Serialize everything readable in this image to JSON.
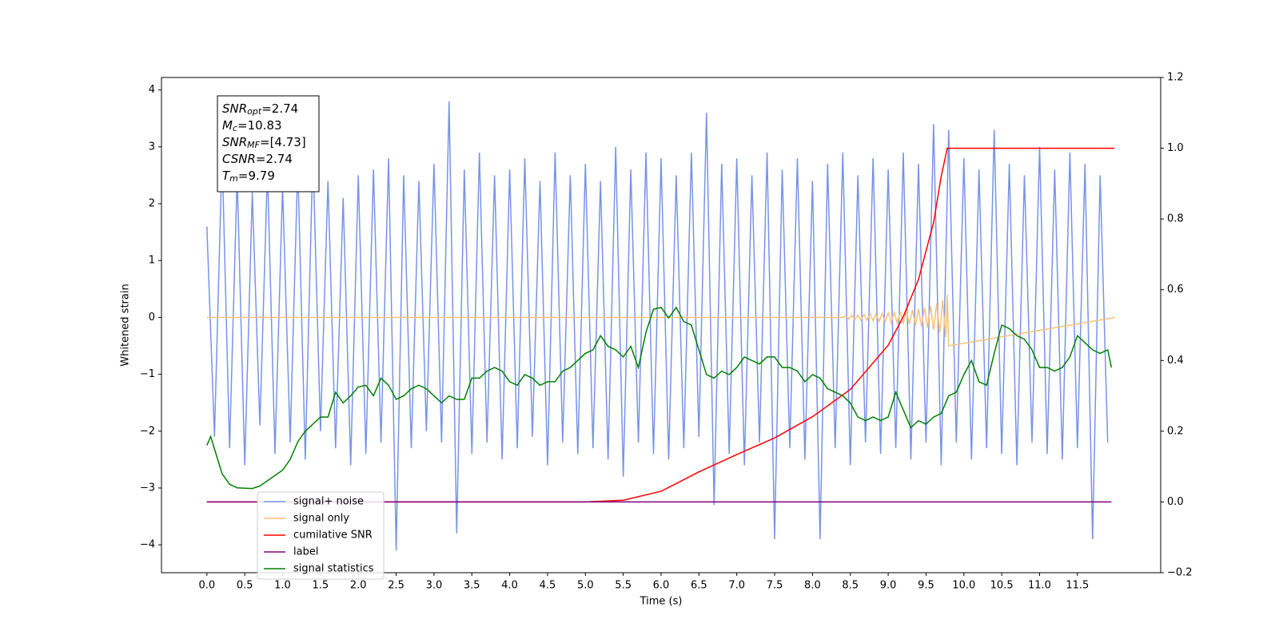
{
  "chart_data": {
    "type": "line",
    "xlabel": "Time (s)",
    "ylabel": "Whitened strain",
    "xlim": [
      -0.6,
      12.6
    ],
    "ylim": [
      -4.49,
      4.22
    ],
    "y2lim": [
      -0.2,
      1.2
    ],
    "xticks": [
      {
        "value": 0,
        "label": "0.0"
      },
      0.5,
      {
        "value": 1,
        "label": "1.0"
      },
      1.5,
      {
        "value": 2,
        "label": "2.0"
      },
      2.5,
      {
        "value": 3,
        "label": "3.0"
      },
      3.5,
      {
        "value": 4,
        "label": "4.0"
      },
      4.5,
      {
        "value": 5,
        "label": "5.0"
      },
      5.5,
      {
        "value": 6,
        "label": "6.0"
      },
      6.5,
      {
        "value": 7,
        "label": "7.0"
      },
      7.5,
      {
        "value": 8,
        "label": "8.0"
      },
      8.5,
      {
        "value": 9,
        "label": "9.0"
      },
      9.5,
      {
        "value": 10,
        "label": "10.0"
      },
      10.5,
      {
        "value": 11,
        "label": "11.0"
      },
      11.5
    ],
    "yticks": [
      {
        "value": -4,
        "label": "−4"
      },
      {
        "value": -3,
        "label": "−3"
      },
      {
        "value": -2,
        "label": "−2"
      },
      {
        "value": -1,
        "label": "−1"
      },
      0,
      1,
      2,
      3,
      4
    ],
    "y2ticks": [
      {
        "value": -0.2,
        "label": "−0.2"
      },
      {
        "value": 0,
        "label": "0.0"
      },
      0.2,
      0.4,
      0.6,
      0.8,
      {
        "value": 1,
        "label": "1.0"
      },
      1.2
    ],
    "annotations": [
      {
        "main": "SNR",
        "sub": "opt",
        "value": "=2.74"
      },
      {
        "main": "M",
        "sub": "c",
        "value": "=10.83"
      },
      {
        "main": "SNR",
        "sub": "MF",
        "value": "=[4.73]"
      },
      {
        "main": "CSNR",
        "sub": "",
        "value": "=2.74"
      },
      {
        "main": "T",
        "sub": "m",
        "value": "=9.79"
      }
    ],
    "series": [
      {
        "name": "signal+ noise",
        "color": "#7893e8",
        "x": [
          0,
          0.1,
          0.2,
          0.3,
          0.4,
          0.5,
          0.6,
          0.7,
          0.8,
          0.9,
          1,
          1.1,
          1.2,
          1.3,
          1.4,
          1.5,
          1.6,
          1.7,
          1.8,
          1.9,
          2,
          2.1,
          2.2,
          2.3,
          2.4,
          2.5,
          2.6,
          2.7,
          2.8,
          2.9,
          3,
          3.1,
          3.2,
          3.3,
          3.4,
          3.5,
          3.6,
          3.7,
          3.8,
          3.9,
          4,
          4.1,
          4.2,
          4.3,
          4.4,
          4.5,
          4.6,
          4.7,
          4.8,
          4.9,
          5,
          5.1,
          5.2,
          5.3,
          5.4,
          5.5,
          5.6,
          5.7,
          5.8,
          5.9,
          6,
          6.1,
          6.2,
          6.3,
          6.4,
          6.5,
          6.6,
          6.7,
          6.8,
          6.9,
          7,
          7.1,
          7.2,
          7.3,
          7.4,
          7.5,
          7.6,
          7.7,
          7.8,
          7.9,
          8,
          8.1,
          8.2,
          8.3,
          8.4,
          8.5,
          8.6,
          8.7,
          8.8,
          8.9,
          9,
          9.1,
          9.2,
          9.3,
          9.4,
          9.5,
          9.6,
          9.7,
          9.8,
          9.9,
          10,
          10.1,
          10.2,
          10.3,
          10.4,
          10.5,
          10.6,
          10.7,
          10.8,
          10.9,
          11,
          11.1,
          11.2,
          11.3,
          11.4,
          11.5,
          11.6,
          11.7,
          11.8,
          11.9
        ],
        "values": [
          1.6,
          -2.1,
          2.9,
          -2.3,
          2.5,
          -2.6,
          2.2,
          -1.9,
          2.6,
          -2.4,
          2.3,
          -2.2,
          2.7,
          -2.5,
          2.9,
          -2.0,
          2.4,
          -2.3,
          2.1,
          -2.6,
          2.5,
          -2.4,
          2.6,
          -2.2,
          2.8,
          -4.1,
          2.5,
          -2.3,
          2.4,
          -2.0,
          2.7,
          -2.2,
          3.8,
          -3.8,
          2.6,
          -2.4,
          2.9,
          -2.2,
          2.5,
          -2.5,
          2.6,
          -2.3,
          2.8,
          -2.1,
          2.4,
          -2.6,
          2.9,
          -2.2,
          2.5,
          -2.4,
          2.7,
          -2.3,
          2.4,
          -2.5,
          3.0,
          -2.8,
          2.6,
          -2.2,
          2.9,
          -2.4,
          2.8,
          -2.5,
          2.5,
          -2.3,
          2.9,
          -2.1,
          3.6,
          -3.3,
          2.7,
          -2.4,
          2.8,
          -2.6,
          2.5,
          -2.2,
          2.9,
          -3.9,
          2.6,
          -2.3,
          2.8,
          -2.5,
          2.4,
          -3.9,
          2.7,
          -2.3,
          2.9,
          -2.6,
          2.5,
          -2.2,
          2.8,
          -2.4,
          2.6,
          -2.3,
          2.9,
          -2.5,
          2.7,
          -2.2,
          3.4,
          -2.6,
          3.3,
          -2.2,
          2.8,
          -2.5,
          2.6,
          -2.3,
          3.3,
          -2.4,
          2.7,
          -2.6,
          2.5,
          -2.2,
          3.0,
          -2.4,
          2.6,
          -2.5,
          2.9,
          -2.3,
          2.7,
          -3.9,
          2.5,
          -2.2
        ]
      },
      {
        "name": "signal only",
        "color": "#f5c17a",
        "x": [
          0,
          8.4,
          8.44,
          8.48,
          8.52,
          8.56,
          8.6,
          8.64,
          8.68,
          8.72,
          8.76,
          8.8,
          8.84,
          8.88,
          8.92,
          8.96,
          9,
          9.04,
          9.08,
          9.12,
          9.16,
          9.2,
          9.24,
          9.28,
          9.32,
          9.36,
          9.4,
          9.44,
          9.48,
          9.52,
          9.56,
          9.6,
          9.64,
          9.68,
          9.72,
          9.76,
          9.78,
          9.8,
          12
        ],
        "values": [
          0,
          0,
          0.03,
          -0.03,
          0.04,
          -0.04,
          0.04,
          -0.05,
          0.05,
          -0.05,
          0.06,
          -0.06,
          0.06,
          -0.07,
          0.07,
          -0.08,
          0.08,
          -0.09,
          0.09,
          -0.1,
          0.1,
          -0.11,
          0.12,
          -0.12,
          0.13,
          -0.14,
          0.15,
          -0.16,
          0.17,
          -0.18,
          0.2,
          -0.22,
          0.24,
          -0.27,
          0.3,
          -0.35,
          0.4,
          -0.5,
          0
        ]
      },
      {
        "name": "cumilative SNR",
        "color": "red",
        "axis": "y2",
        "x": [
          0,
          5,
          5.5,
          6,
          6.5,
          7,
          7.5,
          8,
          8.5,
          9,
          9.2,
          9.4,
          9.6,
          9.7,
          9.78,
          11.99
        ],
        "values": [
          0,
          0,
          0.005,
          0.03,
          0.085,
          0.134,
          0.181,
          0.241,
          0.318,
          0.443,
          0.524,
          0.629,
          0.79,
          0.92,
          1,
          1
        ]
      },
      {
        "name": "label",
        "color": "purple",
        "axis": "y2",
        "x": [
          0,
          11.95
        ],
        "values": [
          0,
          0
        ]
      },
      {
        "name": "signal statistics",
        "color": "green",
        "axis": "y2",
        "x": [
          0,
          0.05,
          0.1,
          0.2,
          0.3,
          0.4,
          0.6,
          0.7,
          0.8,
          1,
          1.1,
          1.2,
          1.3,
          1.4,
          1.5,
          1.6,
          1.7,
          1.8,
          1.9,
          2,
          2.1,
          2.2,
          2.3,
          2.4,
          2.5,
          2.6,
          2.7,
          2.8,
          2.9,
          3,
          3.1,
          3.2,
          3.3,
          3.4,
          3.5,
          3.6,
          3.7,
          3.8,
          3.9,
          4,
          4.1,
          4.2,
          4.3,
          4.4,
          4.5,
          4.6,
          4.7,
          4.8,
          4.9,
          5,
          5.1,
          5.2,
          5.3,
          5.4,
          5.5,
          5.6,
          5.7,
          5.8,
          5.9,
          6,
          6.1,
          6.2,
          6.3,
          6.4,
          6.5,
          6.6,
          6.7,
          6.8,
          6.9,
          7,
          7.1,
          7.2,
          7.3,
          7.4,
          7.5,
          7.6,
          7.7,
          7.8,
          7.9,
          8,
          8.1,
          8.2,
          8.3,
          8.4,
          8.5,
          8.6,
          8.7,
          8.8,
          8.9,
          9,
          9.1,
          9.2,
          9.3,
          9.4,
          9.5,
          9.6,
          9.7,
          9.8,
          9.9,
          10,
          10.1,
          10.2,
          10.3,
          10.4,
          10.5,
          10.6,
          10.7,
          10.8,
          10.9,
          11,
          11.1,
          11.2,
          11.3,
          11.4,
          11.5,
          11.6,
          11.7,
          11.8,
          11.9,
          11.95
        ],
        "values": [
          0.16,
          0.185,
          0.15,
          0.08,
          0.05,
          0.04,
          0.038,
          0.045,
          0.06,
          0.09,
          0.12,
          0.17,
          0.2,
          0.22,
          0.24,
          0.24,
          0.31,
          0.28,
          0.3,
          0.325,
          0.33,
          0.3,
          0.35,
          0.33,
          0.29,
          0.3,
          0.32,
          0.33,
          0.32,
          0.3,
          0.28,
          0.3,
          0.29,
          0.29,
          0.35,
          0.35,
          0.37,
          0.38,
          0.37,
          0.34,
          0.33,
          0.36,
          0.35,
          0.33,
          0.34,
          0.34,
          0.37,
          0.38,
          0.4,
          0.42,
          0.43,
          0.47,
          0.44,
          0.43,
          0.41,
          0.44,
          0.38,
          0.48,
          0.545,
          0.55,
          0.52,
          0.55,
          0.51,
          0.5,
          0.43,
          0.36,
          0.35,
          0.37,
          0.36,
          0.38,
          0.41,
          0.4,
          0.39,
          0.41,
          0.41,
          0.38,
          0.38,
          0.37,
          0.34,
          0.36,
          0.35,
          0.32,
          0.31,
          0.3,
          0.28,
          0.24,
          0.23,
          0.24,
          0.23,
          0.24,
          0.31,
          0.26,
          0.21,
          0.23,
          0.22,
          0.24,
          0.25,
          0.3,
          0.31,
          0.36,
          0.4,
          0.34,
          0.33,
          0.42,
          0.5,
          0.49,
          0.47,
          0.46,
          0.43,
          0.38,
          0.38,
          0.37,
          0.38,
          0.41,
          0.47,
          0.45,
          0.43,
          0.42,
          0.43,
          0.38
        ]
      }
    ]
  }
}
